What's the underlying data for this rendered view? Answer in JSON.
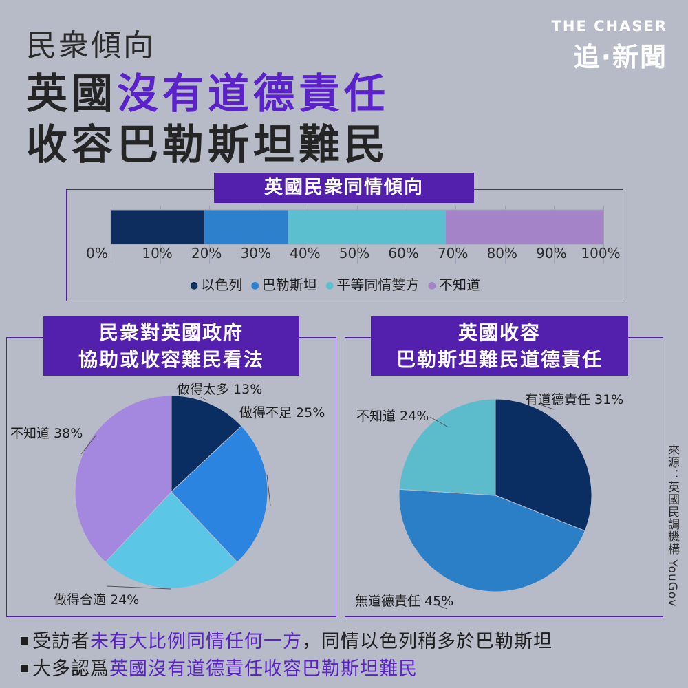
{
  "header": {
    "kicker": "民衆傾向",
    "headline_line1_plain": "英國",
    "headline_line1_accent": "沒有道德責任",
    "headline_line2": "收容巴勒斯坦難民"
  },
  "brand": {
    "en": "THE CHASER",
    "zh": "追·新聞"
  },
  "source": "來源：英國民調機構 YouGov",
  "colors": {
    "accent": "#5a22c8",
    "frame": "#5320ad",
    "background": "#b7bbc8"
  },
  "chart_data": [
    {
      "type": "bar",
      "title": "英國民衆同情傾向",
      "orientation": "horizontal-stacked",
      "xlim": [
        0,
        100
      ],
      "ticks": [
        "0%",
        "10%",
        "20%",
        "30%",
        "40%",
        "50%",
        "60%",
        "70%",
        "80%",
        "90%",
        "100%"
      ],
      "legend_placement": "bottom",
      "series": [
        {
          "name": "以色列",
          "value": 19,
          "color": "#0d2d5e"
        },
        {
          "name": "巴勒斯坦",
          "value": 17,
          "color": "#2d80cc"
        },
        {
          "name": "平等同情雙方",
          "value": 32,
          "color": "#5bbfcf"
        },
        {
          "name": "不知道",
          "value": 32,
          "color": "#a483c8"
        }
      ]
    },
    {
      "type": "pie",
      "title": "民衆對英國政府協助或收容難民看法",
      "title_line1": "民衆對英國政府",
      "title_line2": "協助或收容難民看法",
      "slices": [
        {
          "label": "做得太多 13%",
          "value": 13,
          "color": "#0b2e62"
        },
        {
          "label": "做得不足 25%",
          "value": 25,
          "color": "#2b84e0"
        },
        {
          "label": "做得合適 24%",
          "value": 24,
          "color": "#5cc6e6"
        },
        {
          "label": "不知道 38%",
          "value": 38,
          "color": "#a488df"
        }
      ]
    },
    {
      "type": "pie",
      "title": "英國收容巴勒斯坦難民道德責任",
      "title_line1": "英國收容",
      "title_line2": "巴勒斯坦難民道德責任",
      "slices": [
        {
          "label": "有道德責任 31%",
          "value": 31,
          "color": "#0b2e62"
        },
        {
          "label": "無道德責任 45%",
          "value": 45,
          "color": "#2b7fc7"
        },
        {
          "label": "不知道 24%",
          "value": 24,
          "color": "#5cbccc"
        }
      ]
    }
  ],
  "bullets": [
    {
      "plain_before": "受訪者",
      "accent": "未有大比例同情任何一方",
      "plain_after": "，同情以色列稍多於巴勒斯坦"
    },
    {
      "plain_before": "大多認爲",
      "accent": "英國沒有道德責任收容巴勒斯坦難民",
      "plain_after": ""
    }
  ]
}
